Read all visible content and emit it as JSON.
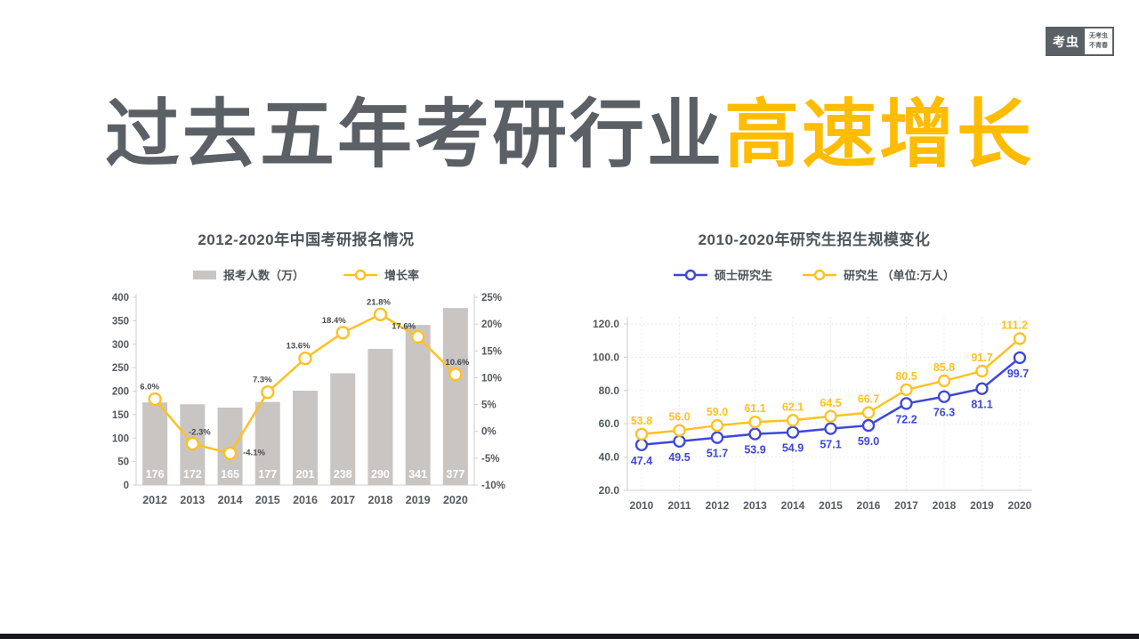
{
  "page": {
    "background": "#ffffff",
    "footer_bar_color": "#17171F"
  },
  "logo": {
    "brand": "考虫",
    "slogan_line1": "无考虫",
    "slogan_line2": "不青春"
  },
  "headline": {
    "prefix": "过去五年考研行业",
    "highlight": "高速增长",
    "prefix_color": "#5A6065",
    "highlight_color": "#FFBC00"
  },
  "colors": {
    "bar_gray": "#C9C5C3",
    "line_yellow": "#FFC123",
    "line_blue": "#3E47DA",
    "axis_gray": "#CFCFCF",
    "tick_text": "#53595E",
    "label_dark": "#474D52"
  },
  "chart_data": [
    {
      "type": "bar+line",
      "title": "2012-2020年中国考研报名情况",
      "categories": [
        "2012",
        "2013",
        "2014",
        "2015",
        "2016",
        "2017",
        "2018",
        "2019",
        "2020"
      ],
      "bar_series": {
        "name": "报考人数（万）",
        "color": "#C9C5C3",
        "values": [
          176,
          172,
          165,
          177,
          201,
          238,
          290,
          341,
          377
        ],
        "labels": [
          "176",
          "172",
          "165",
          "177",
          "201",
          "238",
          "290",
          "341",
          "377"
        ],
        "value_label_color": "#ffffff"
      },
      "line_series": {
        "name": "增长率",
        "color": "#FFC123",
        "values": [
          6.0,
          -2.3,
          -4.1,
          7.3,
          13.6,
          18.4,
          21.8,
          17.6,
          10.6
        ],
        "labels": [
          "6.0%",
          "-2.3%",
          "-4.1%",
          "7.3%",
          "13.6%",
          "18.4%",
          "21.8%",
          "17.6%",
          "10.6%"
        ]
      },
      "left_axis": {
        "min": 0,
        "max": 400,
        "ticks": [
          "400",
          "350",
          "300",
          "250",
          "200",
          "150",
          "100",
          "50",
          "0"
        ]
      },
      "right_axis": {
        "min": -10,
        "max": 25,
        "ticks": [
          "25%",
          "20%",
          "15%",
          "10%",
          "5%",
          "0%",
          "-5%",
          "-10%"
        ]
      },
      "grid": "off",
      "legend_position": "top"
    },
    {
      "type": "line",
      "title": "2010-2020年研究生招生规模变化",
      "categories": [
        "2010",
        "2011",
        "2012",
        "2013",
        "2014",
        "2015",
        "2016",
        "2017",
        "2018",
        "2019",
        "2020"
      ],
      "series": [
        {
          "name": "硕士研究生",
          "legend_label": "硕士研究生",
          "color": "#3E47DA",
          "values": [
            47.4,
            49.5,
            51.7,
            53.9,
            54.9,
            57.1,
            59.0,
            72.2,
            76.3,
            81.1,
            99.7
          ],
          "labels": [
            "47.4",
            "49.5",
            "51.7",
            "53.9",
            "54.9",
            "57.1",
            "59.0",
            "72.2",
            "76.3",
            "81.1",
            "99.7"
          ],
          "label_position": "below"
        },
        {
          "name": "研究生",
          "legend_label": "研究生 （单位:万人）",
          "color": "#FFC123",
          "values": [
            53.8,
            56.0,
            59.0,
            61.1,
            62.1,
            64.5,
            66.7,
            80.5,
            85.8,
            91.7,
            111.2
          ],
          "labels": [
            "53.8",
            "56.0",
            "59.0",
            "61.1",
            "62.1",
            "64.5",
            "66.7",
            "80.5",
            "85.8",
            "91.7",
            "111.2"
          ],
          "label_position": "above"
        }
      ],
      "y_axis": {
        "min": 20,
        "max": 120,
        "ticks": [
          "120.0",
          "100.0",
          "80.0",
          "60.0",
          "40.0",
          "20.0"
        ]
      },
      "grid": "dotted",
      "legend_position": "top"
    }
  ]
}
